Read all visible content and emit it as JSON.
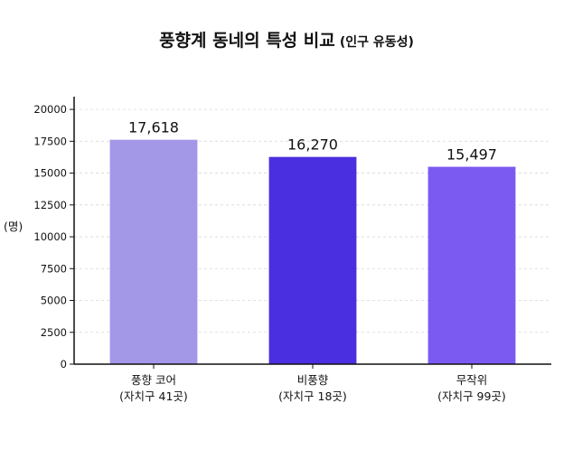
{
  "chart_data": {
    "type": "bar",
    "title": "풍향계 동네의 특성 비교",
    "subtitle": "(인구 유동성)",
    "ylabel": "(명)",
    "ylim": [
      0,
      21000
    ],
    "yticks": [
      0,
      2500,
      5000,
      7500,
      10000,
      12500,
      15000,
      17500,
      20000
    ],
    "grid": true,
    "categories": [
      {
        "line1": "풍향 코어",
        "line2": "(자치구 41곳)"
      },
      {
        "line1": "비풍향",
        "line2": "(자치구 18곳)"
      },
      {
        "line1": "무작위",
        "line2": "(자치구 99곳)"
      }
    ],
    "values": [
      17618,
      16270,
      15497
    ],
    "value_labels": [
      "17,618",
      "16,270",
      "15,497"
    ],
    "colors": [
      "#a397e8",
      "#4a2fe0",
      "#7b5af2"
    ]
  }
}
